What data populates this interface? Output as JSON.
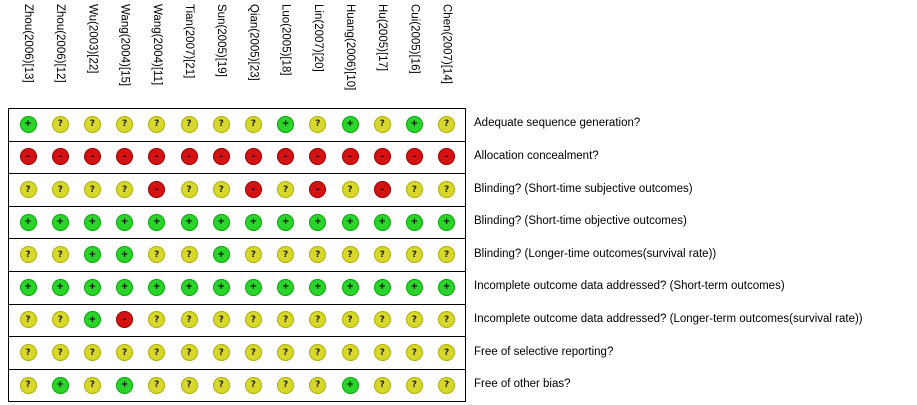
{
  "studies": [
    "Zhou(2006)[13]",
    "Zhou(2006)[12]",
    "Wu(2003)[22]",
    "Wang(2004)[15]",
    "Wang(2004)[11]",
    "Tian(2007)[21]",
    "Sun(2005)[19]",
    "Qian(2005)[23]",
    "Luo(2005)[18]",
    "Lin(2007)[20]",
    "Huang(2006)[10]",
    "Hu(2005)[17]",
    "Cui(2005)[16]",
    "Chen(2007)[14]"
  ],
  "domains": [
    "Adequate sequence generation?",
    "Allocation concealment?",
    "Blinding? (Short-time subjective outcomes)",
    "Blinding? (Short-time objective outcomes)",
    "Blinding? (Longer-time outcomes(survival rate))",
    "Incomplete outcome data addressed? (Short-term outcomes)",
    "Incomplete outcome data addressed? (Longer-term outcomes(survival rate))",
    "Free of selective reporting?",
    "Free of other bias?"
  ],
  "judgements": [
    [
      "+",
      "?",
      "?",
      "?",
      "?",
      "?",
      "?",
      "?",
      "+",
      "?",
      "+",
      "?",
      "+",
      "?"
    ],
    [
      "-",
      "-",
      "-",
      "-",
      "-",
      "-",
      "-",
      "-",
      "-",
      "-",
      "-",
      "-",
      "-",
      "-"
    ],
    [
      "?",
      "?",
      "?",
      "?",
      "-",
      "?",
      "?",
      "-",
      "?",
      "-",
      "?",
      "-",
      "?",
      "?"
    ],
    [
      "+",
      "+",
      "+",
      "+",
      "+",
      "+",
      "+",
      "+",
      "+",
      "+",
      "+",
      "+",
      "+",
      "+"
    ],
    [
      "?",
      "?",
      "+",
      "+",
      "?",
      "?",
      "+",
      "?",
      "?",
      "?",
      "?",
      "?",
      "?",
      "?"
    ],
    [
      "+",
      "+",
      "+",
      "+",
      "+",
      "+",
      "+",
      "+",
      "+",
      "+",
      "+",
      "+",
      "+",
      "+"
    ],
    [
      "?",
      "?",
      "+",
      "-",
      "?",
      "?",
      "?",
      "?",
      "?",
      "?",
      "?",
      "?",
      "?",
      "?"
    ],
    [
      "?",
      "?",
      "?",
      "?",
      "?",
      "?",
      "?",
      "?",
      "?",
      "?",
      "?",
      "?",
      "?",
      "?"
    ],
    [
      "?",
      "+",
      "?",
      "+",
      "?",
      "?",
      "?",
      "?",
      "?",
      "?",
      "+",
      "?",
      "?",
      "?"
    ]
  ],
  "colors": {
    "low_risk": "#2ad42a",
    "unclear_risk": "#d8d82a",
    "high_risk": "#d41212"
  }
}
